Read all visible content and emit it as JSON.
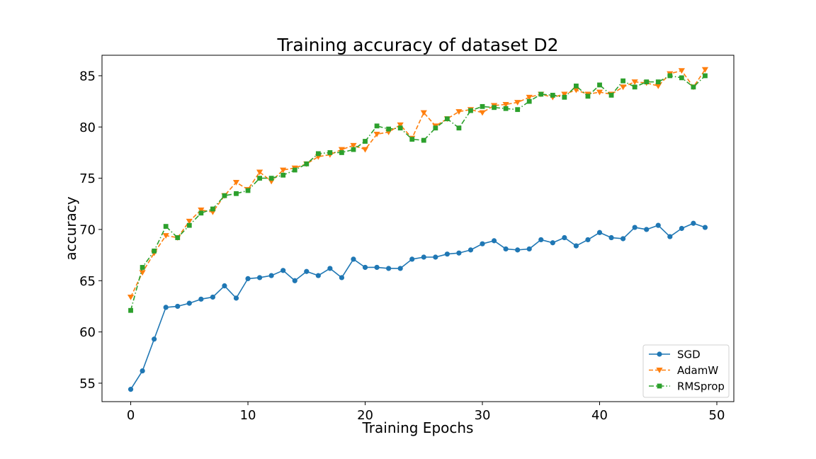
{
  "chart_data": {
    "type": "line",
    "title": "Training accuracy of dataset D2",
    "xlabel": "Training Epochs",
    "ylabel": "accuracy",
    "xlim": [
      -2.45,
      51.45
    ],
    "ylim": [
      53.2,
      87.0
    ],
    "xticks": [
      0,
      10,
      20,
      30,
      40,
      50
    ],
    "yticks": [
      55,
      60,
      65,
      70,
      75,
      80,
      85
    ],
    "grid": false,
    "legend_position": "lower-right",
    "x": [
      0,
      1,
      2,
      3,
      4,
      5,
      6,
      7,
      8,
      9,
      10,
      11,
      12,
      13,
      14,
      15,
      16,
      17,
      18,
      19,
      20,
      21,
      22,
      23,
      24,
      25,
      26,
      27,
      28,
      29,
      30,
      31,
      32,
      33,
      34,
      35,
      36,
      37,
      38,
      39,
      40,
      41,
      42,
      43,
      44,
      45,
      46,
      47,
      48,
      49
    ],
    "series": [
      {
        "name": "SGD",
        "color": "#1f77b4",
        "marker": "circle",
        "linestyle": "solid",
        "values": [
          54.4,
          56.2,
          59.3,
          62.4,
          62.5,
          62.8,
          63.2,
          63.4,
          64.5,
          63.3,
          65.2,
          65.3,
          65.5,
          66.0,
          65.0,
          65.9,
          65.5,
          66.2,
          65.3,
          67.1,
          66.3,
          66.3,
          66.2,
          66.2,
          67.1,
          67.3,
          67.3,
          67.6,
          67.7,
          68.0,
          68.6,
          68.9,
          68.1,
          68.0,
          68.1,
          69.0,
          68.7,
          69.2,
          68.4,
          69.0,
          69.7,
          69.2,
          69.1,
          70.2,
          70.0,
          70.4,
          69.3,
          70.1,
          70.6,
          70.2
        ]
      },
      {
        "name": "AdamW",
        "color": "#ff7f0e",
        "marker": "triangle-down",
        "linestyle": "dashed",
        "values": [
          63.4,
          65.8,
          67.7,
          69.4,
          69.2,
          70.8,
          71.9,
          71.7,
          73.3,
          74.6,
          73.9,
          75.6,
          74.7,
          75.8,
          76.0,
          76.4,
          77.1,
          77.3,
          77.8,
          78.2,
          77.8,
          79.3,
          79.5,
          80.2,
          78.9,
          81.4,
          80.1,
          80.8,
          81.5,
          81.7,
          81.4,
          82.1,
          82.2,
          82.4,
          82.9,
          83.2,
          82.9,
          83.2,
          83.6,
          83.2,
          83.4,
          83.2,
          83.9,
          84.4,
          84.3,
          84.0,
          85.2,
          85.5,
          83.9,
          85.6
        ]
      },
      {
        "name": "RMSprop",
        "color": "#2ca02c",
        "marker": "square",
        "linestyle": "dashdot",
        "values": [
          62.1,
          66.3,
          67.9,
          70.3,
          69.2,
          70.4,
          71.6,
          72.0,
          73.3,
          73.5,
          73.8,
          75.0,
          75.0,
          75.3,
          75.8,
          76.4,
          77.4,
          77.5,
          77.5,
          77.8,
          78.6,
          80.1,
          79.8,
          79.9,
          78.8,
          78.7,
          79.9,
          80.8,
          79.9,
          81.6,
          82.0,
          81.9,
          81.8,
          81.7,
          82.5,
          83.2,
          83.1,
          82.9,
          84.0,
          83.0,
          84.1,
          83.1,
          84.5,
          83.9,
          84.4,
          84.4,
          85.0,
          84.8,
          83.9,
          85.0
        ]
      }
    ]
  }
}
